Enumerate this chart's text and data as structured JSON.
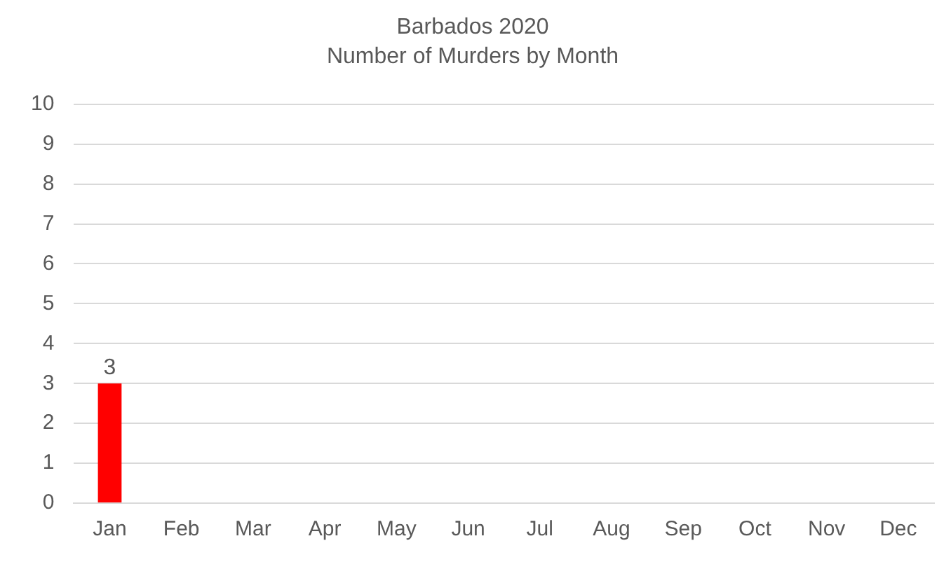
{
  "chart_data": {
    "type": "bar",
    "title": "Barbados 2020",
    "subtitle": "Number of Murders by Month",
    "categories": [
      "Jan",
      "Feb",
      "Mar",
      "Apr",
      "May",
      "Jun",
      "Jul",
      "Aug",
      "Sep",
      "Oct",
      "Nov",
      "Dec"
    ],
    "values": [
      3,
      null,
      null,
      null,
      null,
      null,
      null,
      null,
      null,
      null,
      null,
      null
    ],
    "color": "#ff0000",
    "ylim": [
      0,
      10
    ],
    "yticks": [
      0,
      1,
      2,
      3,
      4,
      5,
      6,
      7,
      8,
      9,
      10
    ],
    "grid": "y",
    "legend": false,
    "data_labels": true
  }
}
